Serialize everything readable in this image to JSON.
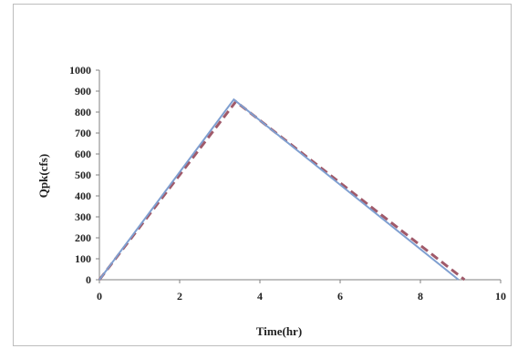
{
  "chart_data": {
    "type": "line",
    "xlabel": "Time(hr)",
    "ylabel": "Qpk(cfs)",
    "xlim": [
      0,
      10
    ],
    "ylim": [
      0,
      1000
    ],
    "x_ticks": [
      "0",
      "2",
      "4",
      "6",
      "8",
      "10"
    ],
    "y_ticks": [
      "0",
      "100",
      "200",
      "300",
      "400",
      "500",
      "600",
      "700",
      "800",
      "900",
      "1000"
    ],
    "grid": false,
    "legend": "none",
    "series": [
      {
        "style": "solid",
        "color": "#7f9fd0",
        "x": [
          0,
          3.35,
          8.95
        ],
        "y": [
          0,
          860,
          0
        ]
      },
      {
        "style": "dashed",
        "color": "#a05a6a",
        "x": [
          0,
          3.4,
          9.1
        ],
        "y": [
          0,
          850,
          0
        ]
      }
    ]
  }
}
